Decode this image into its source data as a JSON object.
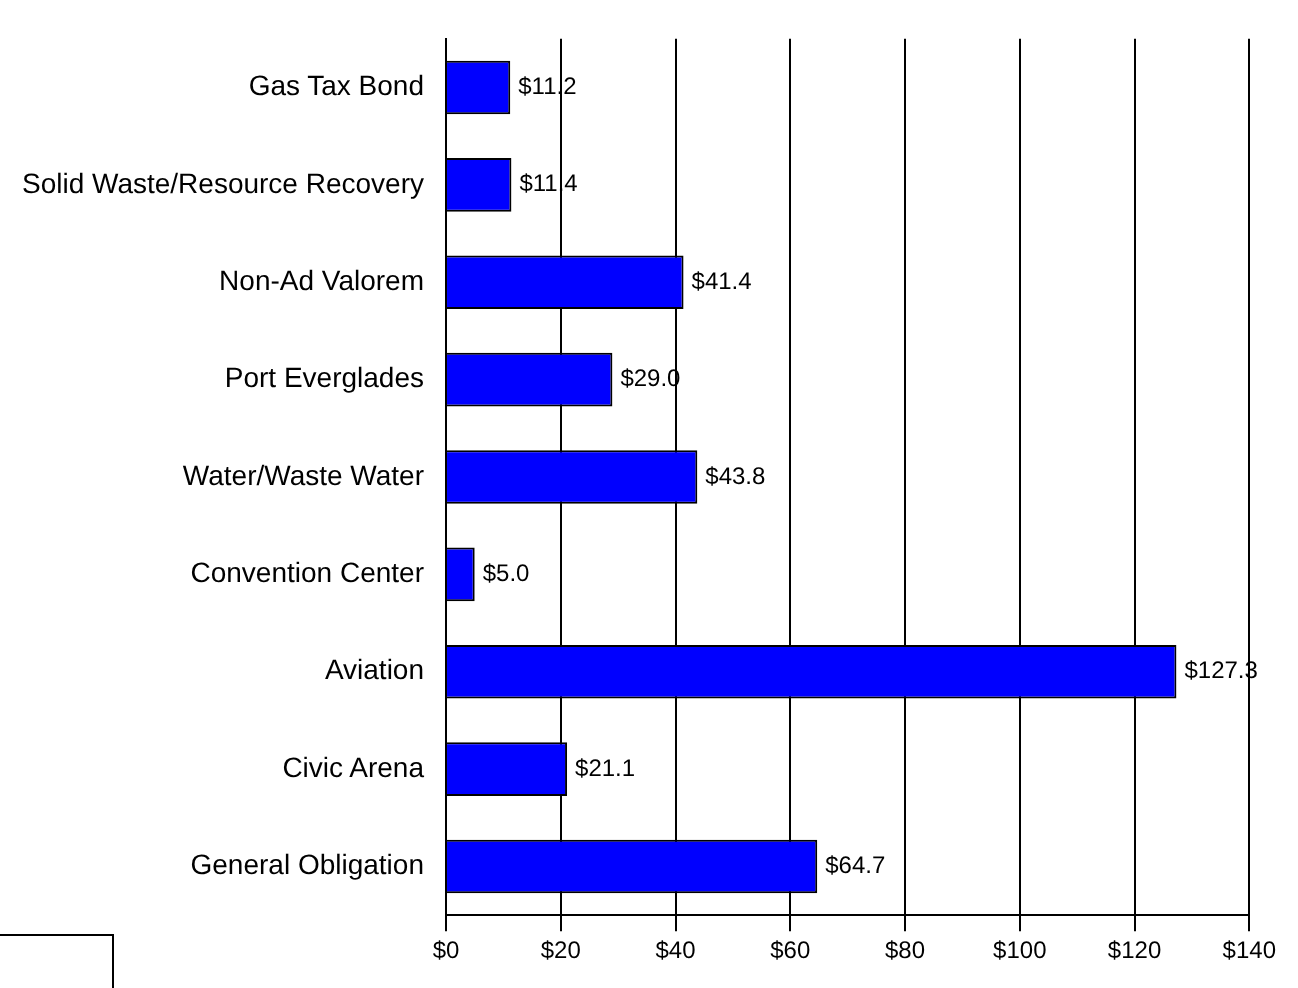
{
  "chart_data": {
    "type": "bar",
    "orientation": "horizontal",
    "categories": [
      "Gas Tax Bond",
      "Solid Waste/Resource Recovery",
      "Non-Ad Valorem",
      "Port Everglades",
      "Water/Waste Water",
      "Convention Center",
      "Aviation",
      "Civic Arena",
      "General Obligation"
    ],
    "values": [
      11.2,
      11.4,
      41.4,
      29.0,
      43.8,
      5.0,
      127.3,
      21.1,
      64.7
    ],
    "value_labels": [
      "$11.2",
      "$11.4",
      "$41.4",
      "$29.0",
      "$43.8",
      "$5.0",
      "$127.3",
      "$21.1",
      "$64.7"
    ],
    "color": "#0000ff",
    "xlim": [
      0,
      140
    ],
    "xticks": [
      {
        "value": 0,
        "label": "$0"
      },
      {
        "value": 20,
        "label": "$20"
      },
      {
        "value": 40,
        "label": "$40"
      },
      {
        "value": 60,
        "label": "$60"
      },
      {
        "value": 80,
        "label": "$80"
      },
      {
        "value": 100,
        "label": "$100"
      },
      {
        "value": 120,
        "label": "$120"
      },
      {
        "value": 140,
        "label": "$140"
      }
    ],
    "grid": "x",
    "legend": false
  }
}
